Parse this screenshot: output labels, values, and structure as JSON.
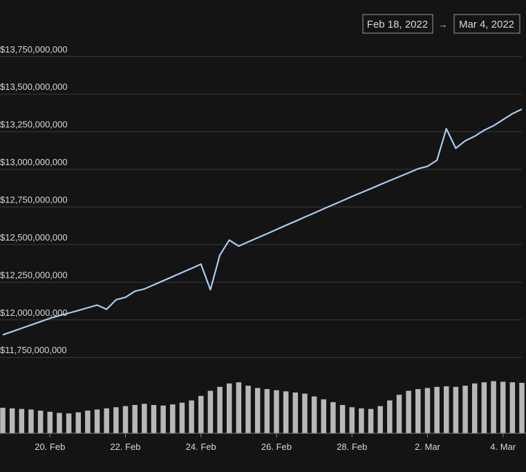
{
  "date_range": {
    "from": "Feb 18, 2022",
    "arrow": "→",
    "to": "Mar 4, 2022"
  },
  "chart_data": {
    "type": "line",
    "categories": [
      null,
      null,
      null,
      null,
      null,
      "20. Feb",
      null,
      null,
      null,
      null,
      null,
      null,
      null,
      "22. Feb",
      null,
      null,
      null,
      null,
      null,
      null,
      null,
      "24. Feb",
      null,
      null,
      null,
      null,
      null,
      null,
      null,
      "26. Feb",
      null,
      null,
      null,
      null,
      null,
      null,
      null,
      "28. Feb",
      null,
      null,
      null,
      null,
      null,
      null,
      null,
      "2. Mar",
      null,
      null,
      null,
      null,
      null,
      null,
      null,
      "4. Mar",
      null,
      null
    ],
    "ylim": [
      11650000000,
      13850000000
    ],
    "yticks": [
      {
        "value": 11750000000,
        "label": "$11,750,000,000"
      },
      {
        "value": 12000000000,
        "label": "$12,000,000,000"
      },
      {
        "value": 12250000000,
        "label": "$12,250,000,000"
      },
      {
        "value": 12500000000,
        "label": "$12,500,000,000"
      },
      {
        "value": 12750000000,
        "label": "$12,750,000,000"
      },
      {
        "value": 13000000000,
        "label": "$13,000,000,000"
      },
      {
        "value": 13250000000,
        "label": "$13,250,000,000"
      },
      {
        "value": 13500000000,
        "label": "$13,500,000,000"
      },
      {
        "value": 13750000000,
        "label": "$13,750,000,000"
      }
    ],
    "y2lim": [
      0,
      100
    ],
    "grid": true,
    "series": [
      {
        "color": "#a9cdf5",
        "values": [
          11900000000,
          11922000000,
          11944000000,
          11966000000,
          11988000000,
          12010000000,
          12028000000,
          12045000000,
          12062000000,
          12080000000,
          12098000000,
          12070000000,
          12133000000,
          12150000000,
          12190000000,
          12205000000,
          12232000000,
          12260000000,
          12287000000,
          12315000000,
          12342000000,
          12370000000,
          12200000000,
          12430000000,
          12530000000,
          12490000000,
          12518000000,
          12545000000,
          12572000000,
          12600000000,
          12628000000,
          12655000000,
          12683000000,
          12710000000,
          12738000000,
          12765000000,
          12792000000,
          12820000000,
          12846000000,
          12872000000,
          12899000000,
          12925000000,
          12951000000,
          12977000000,
          13004000000,
          13020000000,
          13060000000,
          13270000000,
          13140000000,
          13190000000,
          13220000000,
          13260000000,
          13290000000,
          13330000000,
          13370000000,
          13400000000
        ]
      },
      {
        "type": "bar",
        "axis": "y2",
        "color": "#b8b8b8",
        "values": [
          45,
          44,
          43,
          42,
          40,
          38,
          36,
          35,
          37,
          40,
          42,
          44,
          46,
          48,
          50,
          52,
          50,
          49,
          51,
          54,
          58,
          66,
          75,
          82,
          88,
          90,
          84,
          80,
          78,
          76,
          74,
          72,
          70,
          65,
          60,
          55,
          50,
          46,
          44,
          43,
          48,
          58,
          68,
          75,
          78,
          80,
          82,
          83,
          82,
          84,
          88,
          90,
          92,
          91,
          90,
          89
        ]
      }
    ]
  }
}
